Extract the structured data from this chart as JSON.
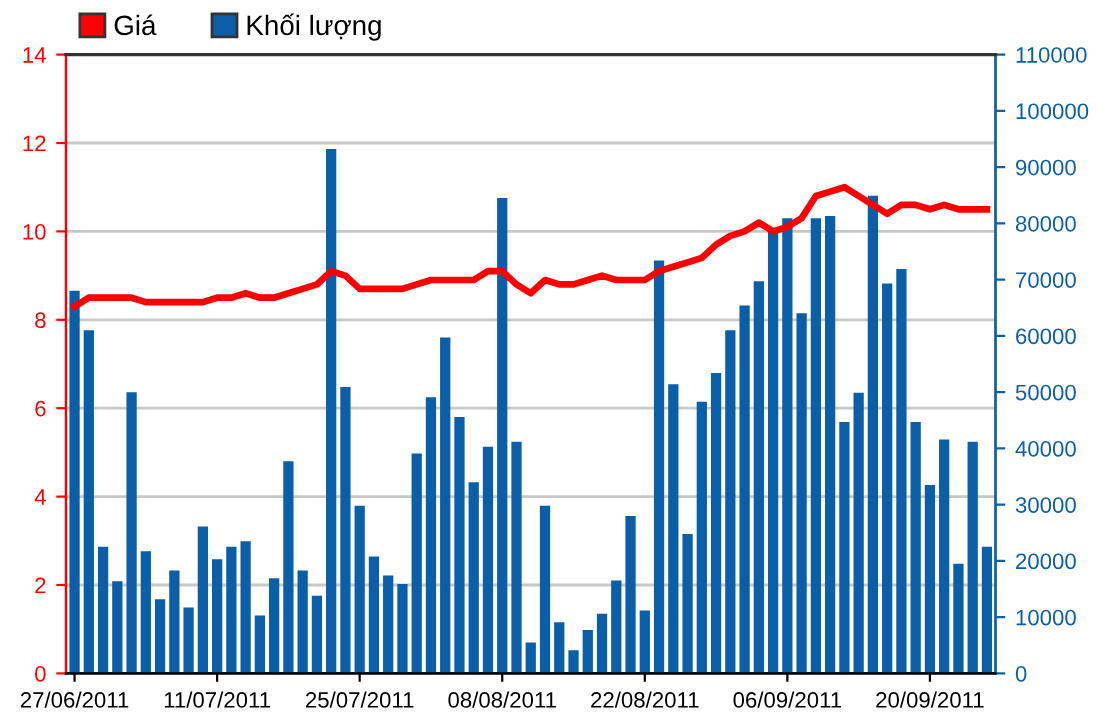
{
  "chart_data": {
    "type": "bar",
    "categories": [
      "27/06/2011",
      null,
      null,
      null,
      null,
      null,
      null,
      null,
      null,
      null,
      "11/07/2011",
      null,
      null,
      null,
      null,
      null,
      null,
      null,
      null,
      null,
      "25/07/2011",
      null,
      null,
      null,
      null,
      null,
      null,
      null,
      null,
      null,
      "08/08/2011",
      null,
      null,
      null,
      null,
      null,
      null,
      null,
      null,
      null,
      "22/08/2011",
      null,
      null,
      null,
      null,
      null,
      null,
      null,
      null,
      null,
      "06/09/2011",
      null,
      null,
      null,
      null,
      null,
      null,
      null,
      null,
      null,
      "20/09/2011",
      null,
      null,
      null,
      null
    ],
    "series": [
      {
        "name": "Khối lượng",
        "axis": "y2",
        "color": "#0b5ea8",
        "values": [
          68000,
          61000,
          22500,
          16400,
          50000,
          21700,
          13200,
          18300,
          11700,
          26100,
          20300,
          22500,
          23500,
          10300,
          16900,
          37700,
          18300,
          13800,
          93200,
          50900,
          29800,
          20800,
          17400,
          15900,
          39100,
          49100,
          59700,
          45600,
          34000,
          40300,
          84500,
          41200,
          5500,
          29800,
          9100,
          4100,
          7700,
          10600,
          16500,
          28000,
          11200,
          73400,
          51400,
          24800,
          48300,
          53400,
          61000,
          65400,
          69700,
          78700,
          80900,
          64000,
          80900,
          81300,
          44700,
          49900,
          84900,
          69300,
          71900,
          44700,
          33500,
          41600,
          19500,
          41200,
          22500
        ]
      },
      {
        "name": "Giá",
        "type": "line",
        "color": "#ff0000",
        "values": [
          8.3,
          8.5,
          8.5,
          8.5,
          8.5,
          8.4,
          8.4,
          8.4,
          8.4,
          8.4,
          8.5,
          8.5,
          8.6,
          8.5,
          8.5,
          8.6,
          8.7,
          8.8,
          9.1,
          9.0,
          8.7,
          8.7,
          8.7,
          8.7,
          8.8,
          8.9,
          8.9,
          8.9,
          8.9,
          9.1,
          9.1,
          8.8,
          8.6,
          8.9,
          8.8,
          8.8,
          8.9,
          9.0,
          8.9,
          8.9,
          8.9,
          9.1,
          9.2,
          9.3,
          9.4,
          9.7,
          9.9,
          10.0,
          10.2,
          10.0,
          10.1,
          10.3,
          10.8,
          10.9,
          11.0,
          10.8,
          10.6,
          10.4,
          10.6,
          10.6,
          10.5,
          10.6,
          10.5,
          10.5,
          10.5
        ]
      }
    ],
    "ylim": [
      0,
      14
    ],
    "yticks": [
      0,
      2,
      4,
      6,
      8,
      10,
      12,
      14
    ],
    "y2lim": [
      0,
      110000
    ],
    "y2ticks": [
      0,
      10000,
      20000,
      30000,
      40000,
      50000,
      60000,
      70000,
      80000,
      90000,
      100000,
      110000
    ],
    "grid": "y",
    "legend": "top left",
    "marker": "none",
    "line_style": "solid"
  }
}
